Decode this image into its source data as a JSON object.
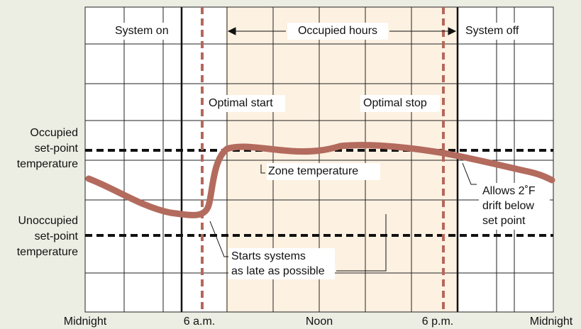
{
  "title_labels": {
    "system_on": "System on",
    "occupied_hours": "Occupied hours",
    "system_off": "System off",
    "optimal_start": "Optimal start",
    "optimal_stop": "Optimal stop"
  },
  "y_labels": {
    "occupied": [
      "Occupied",
      "set-point",
      "temperature"
    ],
    "unoccupied": [
      "Unoccupied",
      "set-point",
      "temperature"
    ]
  },
  "annotations": {
    "zone_temperature": "Zone temperature",
    "allows": [
      "Allows 2˚F",
      "drift below",
      "set point"
    ],
    "starts": [
      "Starts systems",
      "as late as possible"
    ]
  },
  "x_labels": [
    "Midnight",
    "6 a.m.",
    "Noon",
    "6 p.m.",
    "Midnight"
  ]
}
